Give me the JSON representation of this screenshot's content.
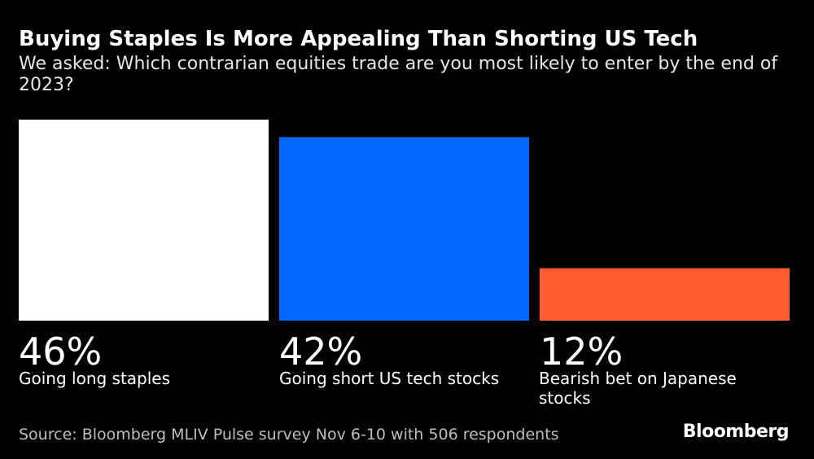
{
  "header": {
    "title": "Buying Staples Is More Appealing Than Shorting US Tech",
    "subtitle": "We asked: Which contrarian equities trade are you most likely to enter by the end of 2023?"
  },
  "footer": {
    "source": "Source: Bloomberg MLIV Pulse survey Nov 6-10 with 506 respondents",
    "brand": "Bloomberg"
  },
  "chart_data": {
    "type": "bar",
    "title": "Buying Staples Is More Appealing Than Shorting US Tech",
    "subtitle": "We asked: Which contrarian equities trade are you most likely to enter by the end of 2023?",
    "categories": [
      "Going long staples",
      "Going short US tech stocks",
      "Bearish bet on Japanese stocks"
    ],
    "values": [
      46,
      42,
      12
    ],
    "value_labels": [
      "46%",
      "42%",
      "12%"
    ],
    "colors": [
      "#ffffff",
      "#0068ff",
      "#ff5b2e"
    ],
    "unit": "%",
    "xlabel": "",
    "ylabel": "",
    "ylim": [
      0,
      46
    ],
    "grid": false
  }
}
